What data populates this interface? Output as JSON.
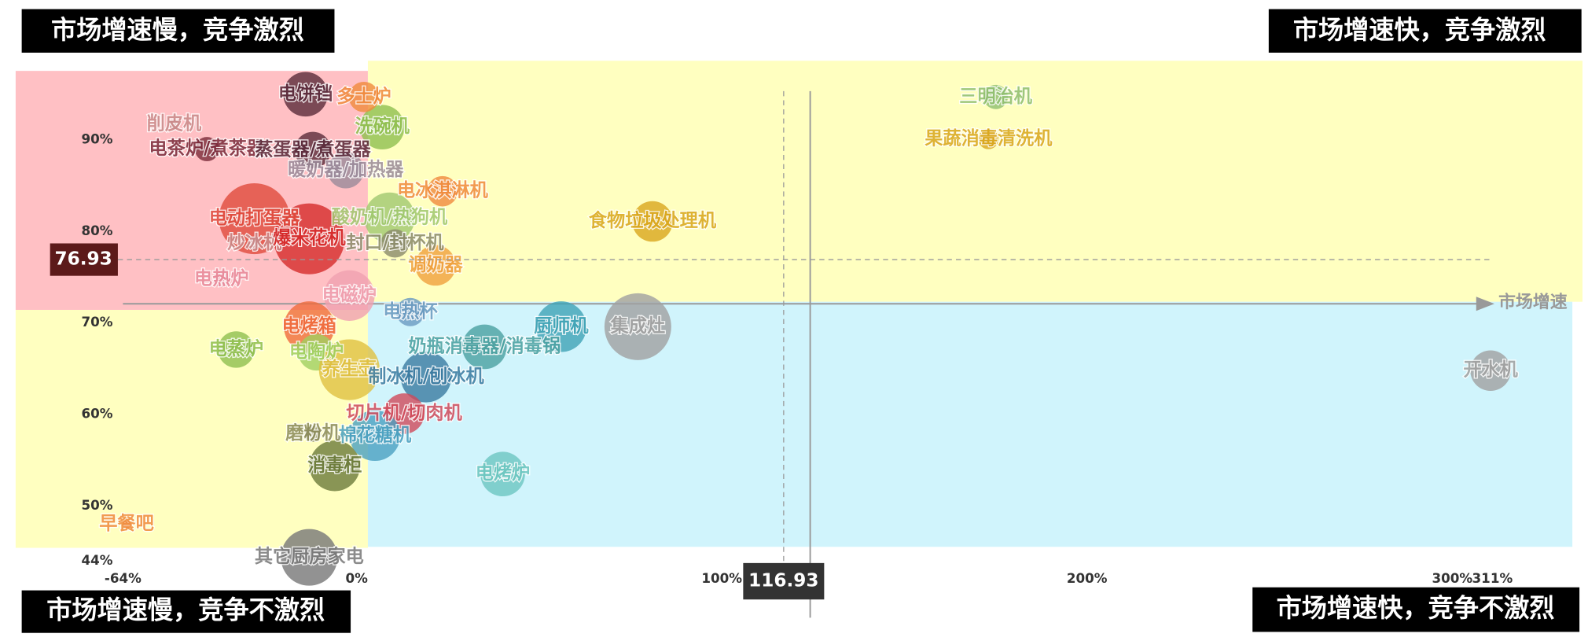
{
  "chart_data": {
    "type": "scatter",
    "x_label": "市场增速",
    "quadrant_labels": [
      "市场增速慢，竞争激烈",
      "市场增速快，竞争激烈",
      "市场增速慢，竞争不激烈",
      "市场增速快，竞争不激烈"
    ],
    "xlim": [
      -64,
      311
    ],
    "ylim": [
      44,
      96
    ],
    "xticks": [
      {
        "value": -64,
        "label": "-64%"
      },
      {
        "value": 0,
        "label": "0%"
      },
      {
        "value": 100,
        "label": "100%"
      },
      {
        "value": 200,
        "label": "200%"
      },
      {
        "value": 300,
        "label": "300%"
      },
      {
        "value": 311,
        "label": "311%"
      }
    ],
    "yticks": [
      {
        "value": 44,
        "label": "44%"
      },
      {
        "value": 50,
        "label": "50%"
      },
      {
        "value": 60,
        "label": "60%"
      },
      {
        "value": 70,
        "label": "70%"
      },
      {
        "value": 80,
        "label": "80%"
      },
      {
        "value": 90,
        "label": "90%"
      }
    ],
    "reference_x": 116.93,
    "reference_y": 76.93,
    "points": [
      {
        "name": "三明治机",
        "x": 175,
        "y": 94.7,
        "size": 12,
        "color": "#8fbf6f"
      },
      {
        "name": "果蔬消毒清洗机",
        "x": 173,
        "y": 90.1,
        "size": 10,
        "color": "#d9a61c"
      },
      {
        "name": "食物垃圾处理机",
        "x": 81,
        "y": 81.1,
        "size": 20,
        "color": "#d9a61c"
      },
      {
        "name": "集成灶",
        "x": 77,
        "y": 69.6,
        "size": 33,
        "color": "#a0a0a0"
      },
      {
        "name": "厨师机",
        "x": 56,
        "y": 69.6,
        "size": 25,
        "color": "#3fa3b5"
      },
      {
        "name": "开水机",
        "x": 310.5,
        "y": 64.8,
        "size": 20,
        "color": "#a0a0a0"
      },
      {
        "name": "电烤炉",
        "x": 40,
        "y": 53.5,
        "size": 22,
        "color": "#6cc6c0"
      },
      {
        "name": "其它厨房家电",
        "x": -13,
        "y": 44.4,
        "size": 28,
        "color": "#777777"
      },
      {
        "name": "消毒柜",
        "x": -6,
        "y": 54.4,
        "size": 25,
        "color": "#6b7a3a"
      },
      {
        "name": "早餐吧",
        "x": -63,
        "y": 48,
        "size": 4,
        "color": "#f08a3c"
      },
      {
        "name": "电蒸炉",
        "x": -33,
        "y": 67.1,
        "size": 18,
        "color": "#8fbf4f"
      },
      {
        "name": "电热炉",
        "x": -37,
        "y": 74.8,
        "size": 8,
        "color": "#e88a9a"
      },
      {
        "name": "电动打蛋器",
        "x": -28,
        "y": 81.4,
        "size": 35,
        "color": "#e04a3c"
      },
      {
        "name": "炒冰机",
        "x": -28,
        "y": 78.7,
        "size": 6,
        "color": "#c98a8a"
      },
      {
        "name": "削皮机",
        "x": -50,
        "y": 91.7,
        "size": 5,
        "color": "#c98a8a"
      },
      {
        "name": "电茶炉/煮茶器",
        "x": -41,
        "y": 89,
        "size": 12,
        "color": "#7a2a3a"
      },
      {
        "name": "蒸蛋器/煮蛋器",
        "x": -12,
        "y": 88.9,
        "size": 18,
        "color": "#5a2a3a"
      },
      {
        "name": "暖奶器/加热器",
        "x": -3,
        "y": 86.7,
        "size": 18,
        "color": "#9a8a9a"
      },
      {
        "name": "洗碗机",
        "x": 7,
        "y": 91.4,
        "size": 22,
        "color": "#8fbf4f"
      },
      {
        "name": "电饼铛",
        "x": -14,
        "y": 95,
        "size": 22,
        "color": "#5a2a3a"
      },
      {
        "name": "多士炉",
        "x": 2,
        "y": 94.7,
        "size": 15,
        "color": "#f08a3c"
      },
      {
        "name": "电冰淇淋机",
        "x": 23.5,
        "y": 84.4,
        "size": 15,
        "color": "#f08a3c"
      },
      {
        "name": "爆米花机",
        "x": -13,
        "y": 79.2,
        "size": 35,
        "color": "#d62a2a"
      },
      {
        "name": "酸奶机/热狗机",
        "x": 9,
        "y": 81.5,
        "size": 25,
        "color": "#a0c86f"
      },
      {
        "name": "封口/封杯机",
        "x": 10.5,
        "y": 78.7,
        "size": 14,
        "color": "#8a8a6a"
      },
      {
        "name": "调奶器",
        "x": 21.6,
        "y": 76.3,
        "size": 20,
        "color": "#f0a03c"
      },
      {
        "name": "电磁炉",
        "x": -2,
        "y": 73,
        "size": 25,
        "color": "#f0a0b0"
      },
      {
        "name": "电热杯",
        "x": 14.7,
        "y": 71.2,
        "size": 14,
        "color": "#6a9ac0"
      },
      {
        "name": "电烤箱",
        "x": -13,
        "y": 69.6,
        "size": 25,
        "color": "#f06a3c"
      },
      {
        "name": "奶瓶消毒器/消毒锅",
        "x": 35,
        "y": 67.4,
        "size": 22,
        "color": "#4aa0a0"
      },
      {
        "name": "电陶炉",
        "x": -11,
        "y": 66.8,
        "size": 18,
        "color": "#a0d060"
      },
      {
        "name": "养生壶",
        "x": -2,
        "y": 64.9,
        "size": 30,
        "color": "#e0c040"
      },
      {
        "name": "制冰机/刨冰机",
        "x": 19,
        "y": 64.1,
        "size": 25,
        "color": "#3a7aa0"
      },
      {
        "name": "切片机/切肉机",
        "x": 13,
        "y": 60.1,
        "size": 20,
        "color": "#d04a5a"
      },
      {
        "name": "棉花糖机",
        "x": 5,
        "y": 57.7,
        "size": 25,
        "color": "#4aa0c0"
      },
      {
        "name": "磨粉机",
        "x": -12,
        "y": 57.9,
        "size": 8,
        "color": "#8a8a5a"
      }
    ]
  }
}
